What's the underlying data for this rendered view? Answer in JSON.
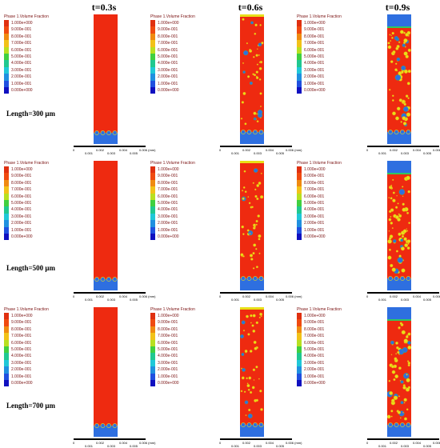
{
  "columns": [
    {
      "title": "t=0.3s"
    },
    {
      "title": "t=0.6s"
    },
    {
      "title": "t=0.9s"
    }
  ],
  "rows": [
    {
      "label": "Length=300 μm"
    },
    {
      "label": "Length=500 μm"
    },
    {
      "label": "Length=700 μm"
    }
  ],
  "legend": {
    "title": "Phase 1.Volume Fraction",
    "entries": [
      {
        "value": "1.000e+000",
        "color": "#e03010"
      },
      {
        "value": "9.000e-001",
        "color": "#f04a10"
      },
      {
        "value": "8.000e-001",
        "color": "#f08a10"
      },
      {
        "value": "7.000e-001",
        "color": "#f2c218"
      },
      {
        "value": "6.000e-001",
        "color": "#b8e020"
      },
      {
        "value": "5.000e-001",
        "color": "#40d040"
      },
      {
        "value": "4.000e-001",
        "color": "#20c890"
      },
      {
        "value": "3.000e-001",
        "color": "#20c8d8"
      },
      {
        "value": "2.000e-001",
        "color": "#2090e0"
      },
      {
        "value": "1.000e-001",
        "color": "#2050e0"
      },
      {
        "value": "0.000e+000",
        "color": "#1010c0"
      }
    ]
  },
  "scalebar": {
    "ticks": [
      "0",
      "0.002",
      "0.004",
      "0.006 (mm)"
    ],
    "sub_ticks": [
      "0.001",
      "0.003",
      "0.005"
    ]
  },
  "colors": {
    "liquid": "#ee2a10",
    "gas": "#2e6fe0",
    "interface_light": "#e8e018",
    "interface_mid": "#30c860"
  }
}
